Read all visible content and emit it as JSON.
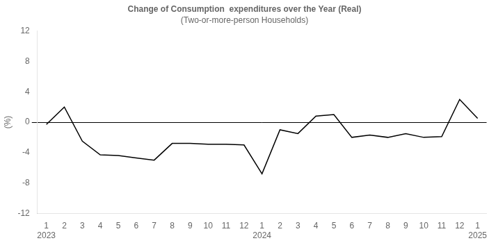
{
  "chart_data": {
    "type": "line",
    "title": "Change of Consumption  expenditures over the Year (Real)",
    "subtitle": "(Two-or-more-person Households)",
    "ylabel": "(%)",
    "categories": [
      "1",
      "2",
      "3",
      "4",
      "5",
      "6",
      "7",
      "8",
      "9",
      "10",
      "11",
      "12",
      "1",
      "2",
      "3",
      "4",
      "5",
      "6",
      "7",
      "8",
      "9",
      "10",
      "11",
      "12",
      "1"
    ],
    "values": [
      -0.3,
      2.0,
      -2.5,
      -4.3,
      -4.4,
      -4.7,
      -5.0,
      -2.8,
      -2.8,
      -2.9,
      -2.9,
      -3.0,
      -6.8,
      -1.0,
      -1.5,
      0.8,
      1.0,
      -2.0,
      -1.7,
      -2.0,
      -1.5,
      -2.0,
      -1.9,
      3.0,
      0.5
    ],
    "color": "#000000",
    "annotations": [
      {
        "text": "2023",
        "x": 0
      },
      {
        "text": "2024",
        "x": 12
      },
      {
        "text": "2025",
        "x": 24
      }
    ],
    "ylim": [
      -12,
      12
    ],
    "yticks": [
      -12,
      -8,
      -4,
      0,
      4,
      8,
      12
    ],
    "grid": false
  }
}
